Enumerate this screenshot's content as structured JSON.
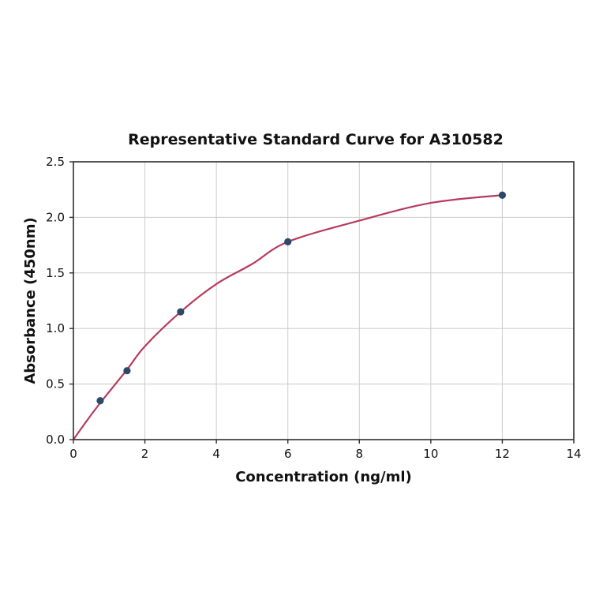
{
  "figure": {
    "background_color": "#ffffff"
  },
  "chart_data": {
    "type": "scatter",
    "title": "Representative Standard Curve for A310582",
    "xlabel": "Concentration (ng/ml)",
    "ylabel": "Absorbance (450nm)",
    "xlim": [
      0,
      14
    ],
    "ylim": [
      0,
      2.5
    ],
    "x_ticks": [
      0,
      2,
      4,
      6,
      8,
      10,
      12,
      14
    ],
    "x_tick_labels": [
      "0",
      "2",
      "4",
      "6",
      "8",
      "10",
      "12",
      "14"
    ],
    "y_ticks": [
      0.0,
      0.5,
      1.0,
      1.5,
      2.0,
      2.5
    ],
    "y_tick_labels": [
      "0.0",
      "0.5",
      "1.0",
      "1.5",
      "2.0",
      "2.5"
    ],
    "grid": true,
    "legend": null,
    "points": [
      {
        "x": 0.75,
        "y": 0.35
      },
      {
        "x": 1.5,
        "y": 0.62
      },
      {
        "x": 3,
        "y": 1.15
      },
      {
        "x": 6,
        "y": 1.78
      },
      {
        "x": 12,
        "y": 2.2
      }
    ],
    "fit_curve_samples": [
      [
        0,
        0
      ],
      [
        0.375,
        0.17
      ],
      [
        0.75,
        0.33
      ],
      [
        1.5,
        0.63
      ],
      [
        2,
        0.84
      ],
      [
        3,
        1.15
      ],
      [
        4,
        1.4
      ],
      [
        5,
        1.58
      ],
      [
        6,
        1.78
      ],
      [
        8,
        1.97
      ],
      [
        10,
        2.13
      ],
      [
        12,
        2.2
      ]
    ],
    "colors": {
      "curve": "#b73a5e",
      "marker": "#2b4a6b",
      "grid": "#cccccc",
      "axis": "#2e2e2e",
      "text": "#111111"
    }
  }
}
